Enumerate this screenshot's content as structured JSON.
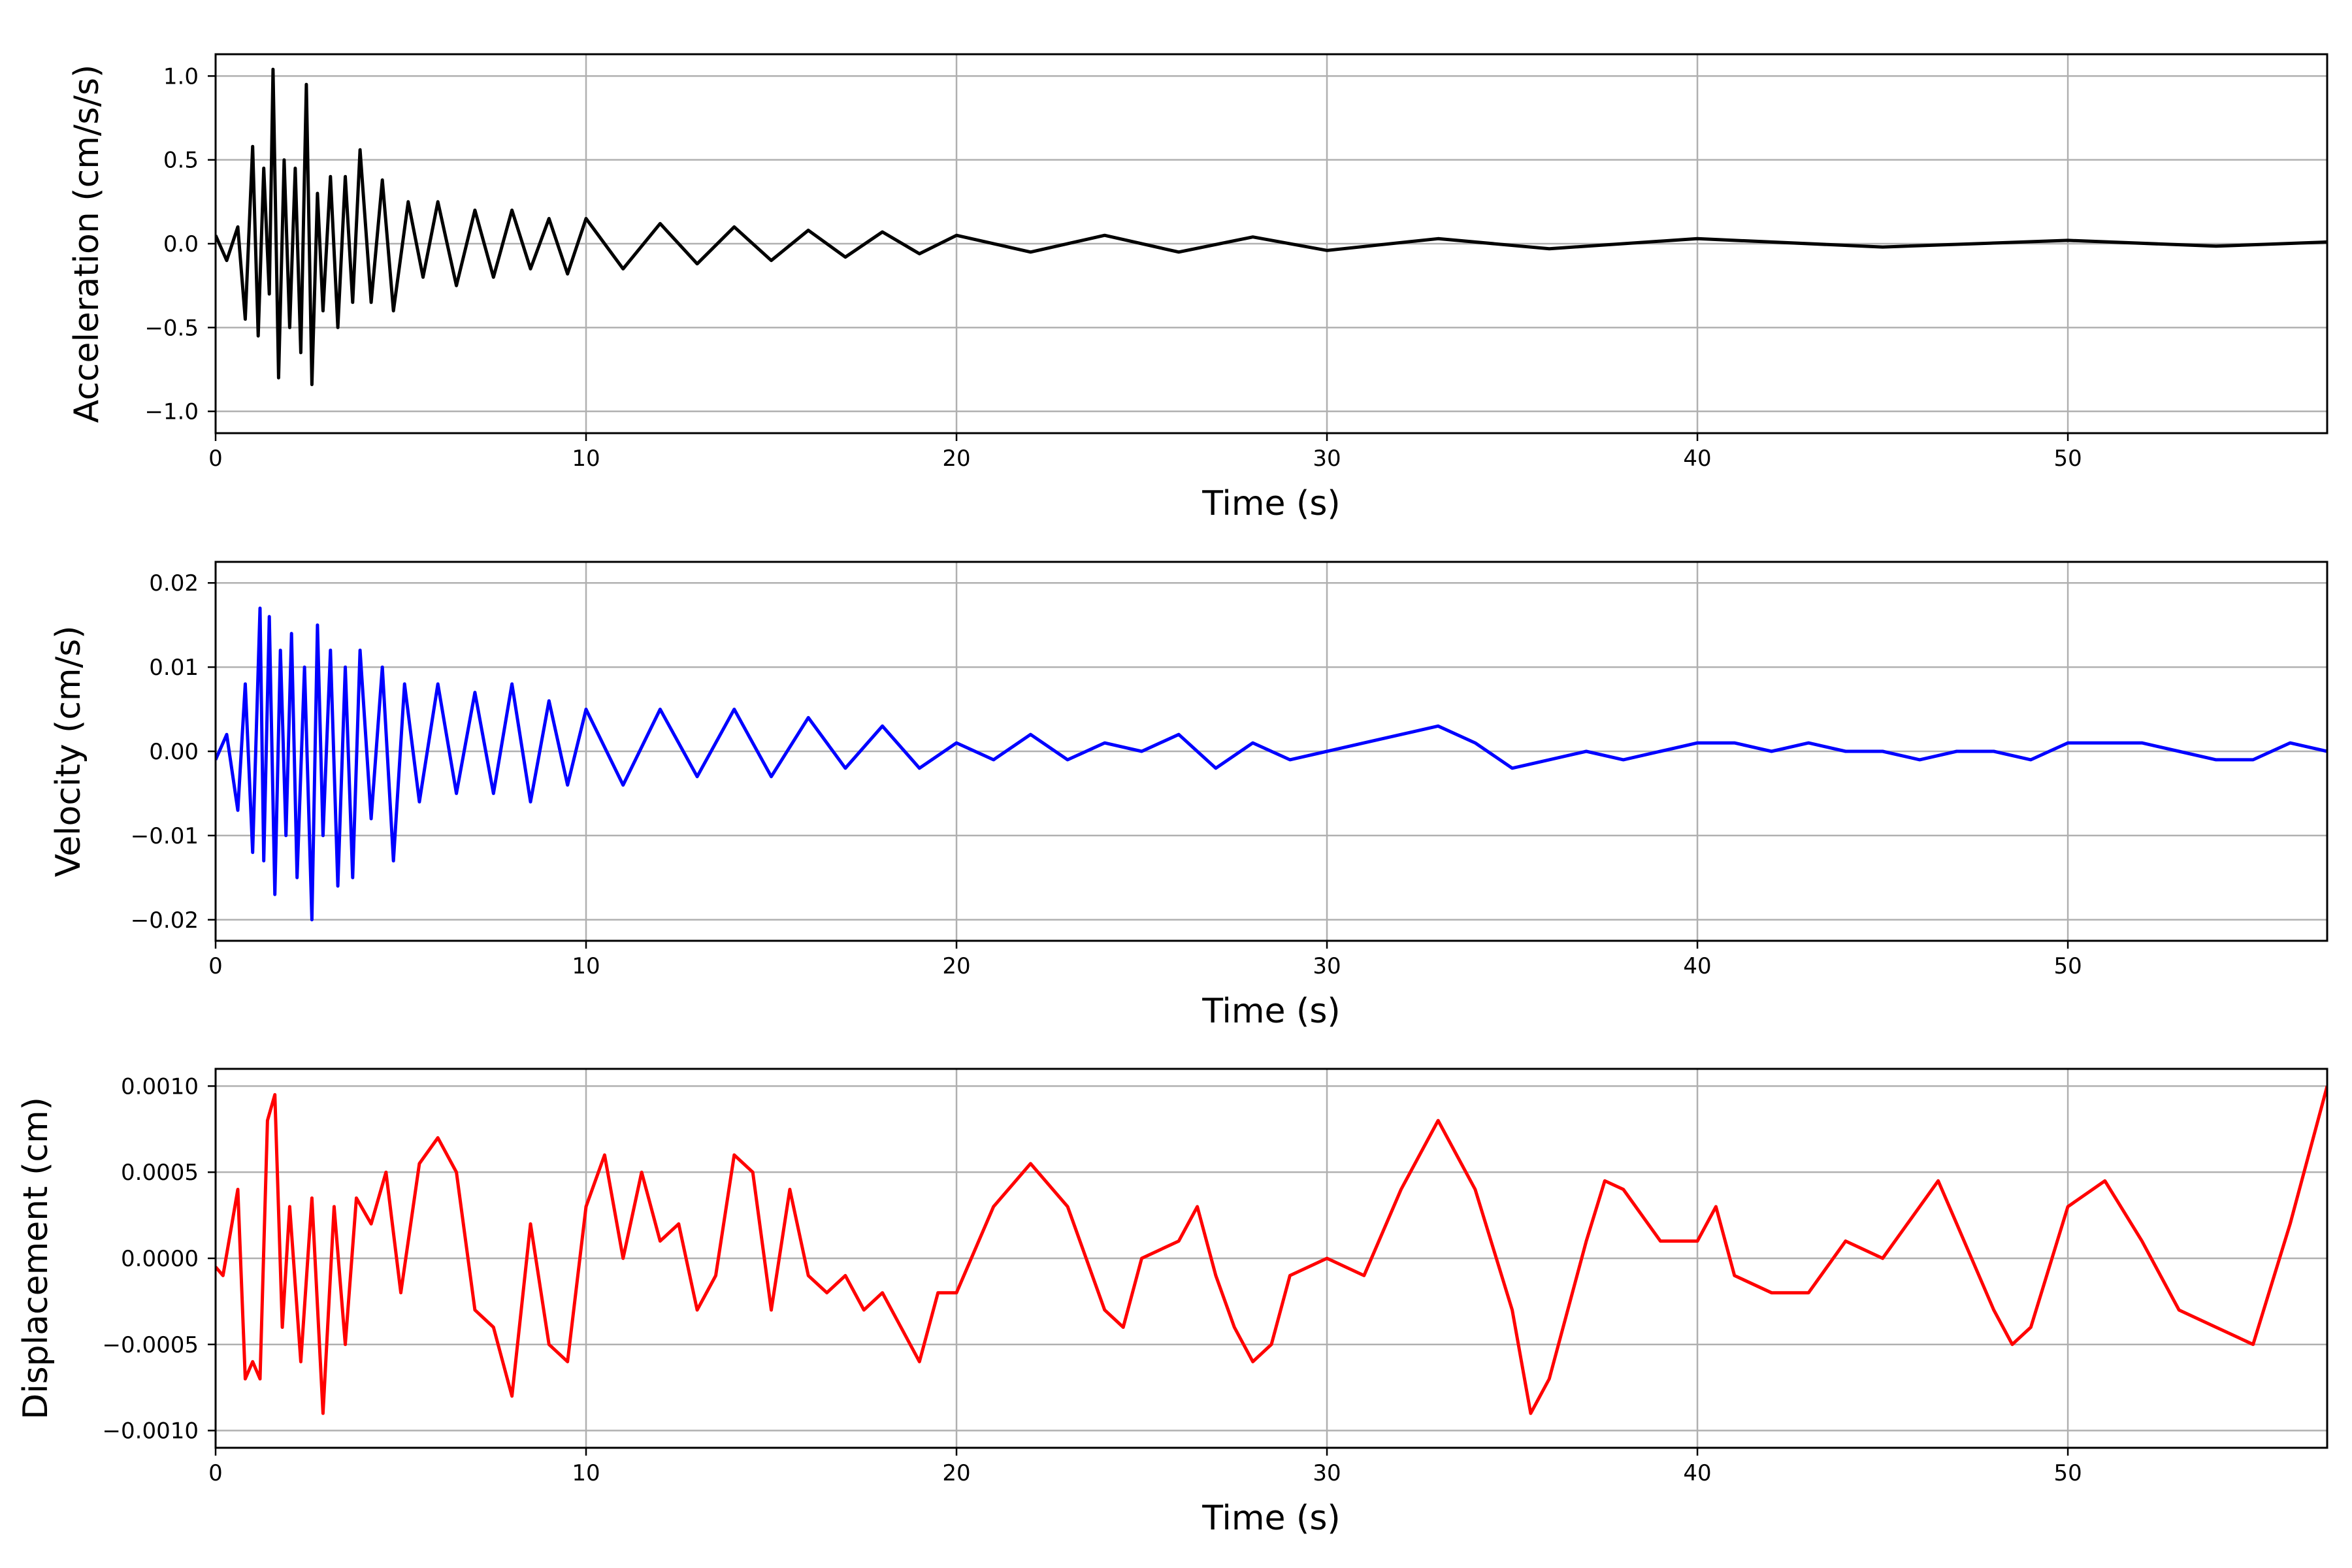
{
  "figure": {
    "background": "#ffffff",
    "grid_color": "#b0b0b0"
  },
  "chart_data": [
    {
      "type": "line",
      "xlabel": "Time (s)",
      "ylabel": "Acceleration (cm/s/s)",
      "xlim": [
        0,
        57
      ],
      "ylim": [
        -1.13,
        1.13
      ],
      "xticks": [
        "0",
        "10",
        "20",
        "30",
        "40",
        "50"
      ],
      "yticks": [
        "1.0",
        "0.5",
        "0.0",
        "−0.5",
        "−1.0"
      ],
      "grid": true,
      "series": [
        {
          "color": "#000000",
          "x": [
            0,
            0.3,
            0.6,
            0.8,
            1.0,
            1.15,
            1.3,
            1.45,
            1.55,
            1.7,
            1.85,
            2.0,
            2.15,
            2.3,
            2.45,
            2.6,
            2.75,
            2.9,
            3.1,
            3.3,
            3.5,
            3.7,
            3.9,
            4.2,
            4.5,
            4.8,
            5.2,
            5.6,
            6.0,
            6.5,
            7.0,
            7.5,
            8.0,
            8.5,
            9.0,
            9.5,
            10.0,
            11.0,
            12.0,
            13.0,
            14.0,
            15.0,
            16.0,
            17.0,
            18.0,
            19.0,
            20.0,
            22.0,
            24.0,
            26.0,
            28.0,
            30.0,
            33.0,
            36.0,
            40.0,
            45.0,
            50.0,
            54.0,
            57.0
          ],
          "y": [
            0.05,
            -0.1,
            0.1,
            -0.45,
            0.58,
            -0.55,
            0.45,
            -0.3,
            1.04,
            -0.8,
            0.5,
            -0.5,
            0.45,
            -0.65,
            0.95,
            -0.84,
            0.3,
            -0.4,
            0.4,
            -0.5,
            0.4,
            -0.35,
            0.56,
            -0.35,
            0.38,
            -0.4,
            0.25,
            -0.2,
            0.25,
            -0.25,
            0.2,
            -0.2,
            0.2,
            -0.15,
            0.15,
            -0.18,
            0.15,
            -0.15,
            0.12,
            -0.12,
            0.1,
            -0.1,
            0.08,
            -0.08,
            0.07,
            -0.06,
            0.05,
            -0.05,
            0.05,
            -0.05,
            0.04,
            -0.04,
            0.03,
            -0.03,
            0.03,
            -0.02,
            0.02,
            -0.015,
            0.01
          ]
        }
      ]
    },
    {
      "type": "line",
      "xlabel": "Time (s)",
      "ylabel": "Velocity (cm/s)",
      "xlim": [
        0,
        57
      ],
      "ylim": [
        -0.0225,
        0.0225
      ],
      "xticks": [
        "0",
        "10",
        "20",
        "30",
        "40",
        "50"
      ],
      "yticks": [
        "0.02",
        "0.01",
        "0.00",
        "−0.01",
        "−0.02"
      ],
      "grid": true,
      "series": [
        {
          "color": "#0000ff",
          "x": [
            0,
            0.3,
            0.6,
            0.8,
            1.0,
            1.2,
            1.3,
            1.45,
            1.6,
            1.75,
            1.9,
            2.05,
            2.2,
            2.4,
            2.6,
            2.75,
            2.9,
            3.1,
            3.3,
            3.5,
            3.7,
            3.9,
            4.2,
            4.5,
            4.8,
            5.1,
            5.5,
            6.0,
            6.5,
            7.0,
            7.5,
            8.0,
            8.5,
            9.0,
            9.5,
            10.0,
            11.0,
            12.0,
            13.0,
            14.0,
            15.0,
            16.0,
            17.0,
            18.0,
            19.0,
            20.0,
            21.0,
            22.0,
            23.0,
            24.0,
            25.0,
            26.0,
            27.0,
            28.0,
            29.0,
            30.0,
            31.0,
            32.0,
            33.0,
            34.0,
            35.0,
            36.0,
            37.0,
            38.0,
            39.0,
            40.0,
            41.0,
            42.0,
            43.0,
            44.0,
            45.0,
            46.0,
            47.0,
            48.0,
            49.0,
            50.0,
            51.0,
            52.0,
            53.0,
            54.0,
            55.0,
            56.0,
            57.0
          ],
          "y": [
            -0.001,
            0.002,
            -0.007,
            0.008,
            -0.012,
            0.017,
            -0.013,
            0.016,
            -0.017,
            0.012,
            -0.01,
            0.014,
            -0.015,
            0.01,
            -0.02,
            0.015,
            -0.01,
            0.012,
            -0.016,
            0.01,
            -0.015,
            0.012,
            -0.008,
            0.01,
            -0.013,
            0.008,
            -0.006,
            0.008,
            -0.005,
            0.007,
            -0.005,
            0.008,
            -0.006,
            0.006,
            -0.004,
            0.005,
            -0.004,
            0.005,
            -0.003,
            0.005,
            -0.003,
            0.004,
            -0.002,
            0.003,
            -0.002,
            0.001,
            -0.001,
            0.002,
            -0.001,
            0.001,
            0.0,
            0.002,
            -0.002,
            0.001,
            -0.001,
            0.0,
            0.001,
            0.002,
            0.003,
            0.001,
            -0.002,
            -0.001,
            0.0,
            -0.001,
            0.0,
            0.001,
            0.001,
            0.0,
            0.001,
            0.0,
            0.0,
            -0.001,
            0.0,
            0.0,
            -0.001,
            0.001,
            0.001,
            0.001,
            0.0,
            -0.001,
            -0.001,
            0.001,
            0.0
          ]
        }
      ]
    },
    {
      "type": "line",
      "xlabel": "Time (s)",
      "ylabel": "Displacement (cm)",
      "xlim": [
        0,
        57
      ],
      "ylim": [
        -0.0011,
        0.0011
      ],
      "xticks": [
        "0",
        "10",
        "20",
        "30",
        "40",
        "50"
      ],
      "yticks": [
        "0.0010",
        "0.0005",
        "0.0000",
        "−0.0005",
        "−0.0010"
      ],
      "grid": true,
      "series": [
        {
          "color": "#ff0000",
          "x": [
            0,
            0.2,
            0.4,
            0.6,
            0.8,
            1.0,
            1.2,
            1.4,
            1.6,
            1.8,
            2.0,
            2.3,
            2.6,
            2.9,
            3.2,
            3.5,
            3.8,
            4.2,
            4.6,
            5.0,
            5.5,
            6.0,
            6.5,
            7.0,
            7.5,
            8.0,
            8.5,
            9.0,
            9.5,
            10.0,
            10.5,
            11.0,
            11.5,
            12.0,
            12.5,
            13.0,
            13.5,
            14.0,
            14.5,
            15.0,
            15.5,
            16.0,
            16.5,
            17.0,
            17.5,
            18.0,
            18.5,
            19.0,
            19.5,
            20.0,
            21.0,
            22.0,
            23.0,
            24.0,
            24.5,
            25.0,
            26.0,
            26.5,
            27.0,
            27.5,
            28.0,
            28.5,
            29.0,
            30.0,
            31.0,
            32.0,
            33.0,
            34.0,
            35.0,
            35.5,
            36.0,
            37.0,
            37.5,
            38.0,
            39.0,
            40.0,
            40.5,
            41.0,
            42.0,
            43.0,
            44.0,
            45.0,
            46.0,
            46.5,
            47.0,
            48.0,
            48.5,
            49.0,
            50.0,
            51.0,
            52.0,
            53.0,
            54.0,
            55.0,
            56.0,
            57.0
          ],
          "y": [
            -5e-05,
            -0.0001,
            0.00015,
            0.0004,
            -0.0007,
            -0.0006,
            -0.0007,
            0.0008,
            0.00095,
            -0.0004,
            0.0003,
            -0.0006,
            0.00035,
            -0.0009,
            0.0003,
            -0.0005,
            0.00035,
            0.0002,
            0.0005,
            -0.0002,
            0.00055,
            0.0007,
            0.0005,
            -0.0003,
            -0.0004,
            -0.0008,
            0.0002,
            -0.0005,
            -0.0006,
            0.0003,
            0.0006,
            0.0,
            0.0005,
            0.0001,
            0.0002,
            -0.0003,
            -0.0001,
            0.0006,
            0.0005,
            -0.0003,
            0.0004,
            -0.0001,
            -0.0002,
            -0.0001,
            -0.0003,
            -0.0002,
            -0.0004,
            -0.0006,
            -0.0002,
            -0.0002,
            0.0003,
            0.00055,
            0.0003,
            -0.0003,
            -0.0004,
            0.0,
            0.0001,
            0.0003,
            -0.0001,
            -0.0004,
            -0.0006,
            -0.0005,
            -0.0001,
            0.0,
            -0.0001,
            0.0004,
            0.0008,
            0.0004,
            -0.0003,
            -0.0009,
            -0.0007,
            0.0001,
            0.00045,
            0.0004,
            0.0001,
            0.0001,
            0.0003,
            -0.0001,
            -0.0002,
            -0.0002,
            0.0001,
            0.0,
            0.0003,
            0.00045,
            0.0002,
            -0.0003,
            -0.0005,
            -0.0004,
            0.0003,
            0.00045,
            0.0001,
            -0.0003,
            -0.0004,
            -0.0005,
            0.0002,
            0.001
          ]
        }
      ]
    }
  ]
}
